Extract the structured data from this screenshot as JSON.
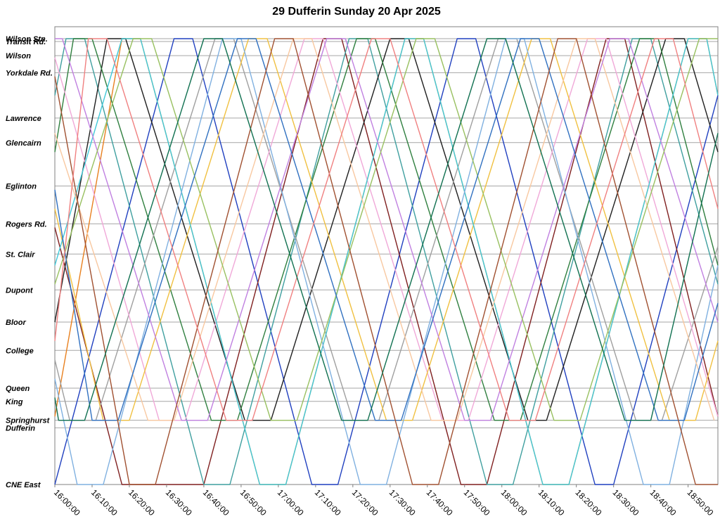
{
  "chart_data": {
    "type": "line",
    "title": "29 Dufferin Sunday 20 Apr 2025",
    "xlabel": "",
    "ylabel": "",
    "x_ticks": [
      "16:00:00",
      "16:10:00",
      "16:20:00",
      "16:30:00",
      "16:40:00",
      "16:50:00",
      "17:00:00",
      "17:10:00",
      "17:20:00",
      "17:30:00",
      "17:40:00",
      "17:50:00",
      "18:00:00",
      "18:10:00",
      "18:20:00",
      "18:30:00",
      "18:40:00",
      "18:50:00"
    ],
    "xlim": [
      "16:00:00",
      "18:58:00"
    ],
    "stops": [
      {
        "name": "Wilson Stn.",
        "km": 0.0
      },
      {
        "name": "Transit Rd.",
        "km": 0.15
      },
      {
        "name": "Wilson",
        "km": 0.9
      },
      {
        "name": "Yorkdale Rd.",
        "km": 1.8
      },
      {
        "name": "Lawrence",
        "km": 4.2
      },
      {
        "name": "Glencairn",
        "km": 5.5
      },
      {
        "name": "Eglinton",
        "km": 7.8
      },
      {
        "name": "Rogers Rd.",
        "km": 9.8
      },
      {
        "name": "St. Clair",
        "km": 11.4
      },
      {
        "name": "Dupont",
        "km": 13.3
      },
      {
        "name": "Bloor",
        "km": 15.0
      },
      {
        "name": "College",
        "km": 16.5
      },
      {
        "name": "Queen",
        "km": 18.5
      },
      {
        "name": "King",
        "km": 19.2
      },
      {
        "name": "Springhurst",
        "km": 20.2
      },
      {
        "name": "Dufferin",
        "km": 20.6
      },
      {
        "name": "CNE East",
        "km": 23.6
      }
    ],
    "series_colors": [
      "#1f3fbf",
      "#7f1f1f",
      "#e8801f",
      "#3f9f9f",
      "#1f1f1f",
      "#2f7f3f",
      "#9f9f9f",
      "#f0a8d8",
      "#f0c040",
      "#40c8d8",
      "#7fb0e0",
      "#f8c8a0",
      "#c080e0",
      "#98c060",
      "#3070c0",
      "#a05030",
      "#f08080",
      "#107050"
    ],
    "series": [
      {
        "trips": [
          [
            "16:00:00",
            23.6
          ],
          [
            "16:32:00",
            0.0
          ],
          [
            "16:37:00",
            0.0
          ],
          [
            "17:09:00",
            23.6
          ],
          [
            "17:16:00",
            23.6
          ],
          [
            "17:48:00",
            0.0
          ],
          [
            "17:53:00",
            0.0
          ],
          [
            "18:25:00",
            23.6
          ],
          [
            "18:30:00",
            23.6
          ],
          [
            "18:58:00",
            3.0
          ]
        ]
      },
      {
        "trips": [
          [
            "16:00:00",
            10.0
          ],
          [
            "16:18:00",
            23.6
          ],
          [
            "16:40:00",
            23.6
          ],
          [
            "17:12:00",
            0.0
          ],
          [
            "17:17:00",
            0.0
          ],
          [
            "17:49:00",
            23.6
          ],
          [
            "17:56:00",
            23.6
          ],
          [
            "18:28:00",
            0.0
          ],
          [
            "18:33:00",
            0.0
          ],
          [
            "18:58:00",
            20.0
          ]
        ]
      },
      {
        "trips": [
          [
            "16:00:00",
            20.0
          ],
          [
            "16:18:00",
            0.0
          ],
          [
            "16:23:00",
            0.0
          ],
          [
            "16:55:00",
            23.6
          ],
          [
            "17:02:00",
            23.6
          ],
          [
            "17:34:00",
            0.0
          ],
          [
            "17:39:00",
            0.0
          ],
          [
            "18:11:00",
            23.6
          ],
          [
            "18:18:00",
            23.6
          ],
          [
            "18:50:00",
            0.0
          ],
          [
            "18:55:00",
            0.0
          ],
          [
            "18:58:00",
            3.0
          ]
        ]
      },
      {
        "trips": [
          [
            "16:00:00",
            3.0
          ],
          [
            "16:03:00",
            0.0
          ],
          [
            "16:08:00",
            0.0
          ],
          [
            "16:40:00",
            23.6
          ],
          [
            "16:47:00",
            23.6
          ],
          [
            "17:19:00",
            0.0
          ],
          [
            "17:24:00",
            0.0
          ],
          [
            "17:56:00",
            23.6
          ],
          [
            "18:03:00",
            23.6
          ],
          [
            "18:35:00",
            0.0
          ],
          [
            "18:40:00",
            0.0
          ],
          [
            "18:58:00",
            13.0
          ]
        ]
      },
      {
        "trips": [
          [
            "16:00:00",
            15.0
          ],
          [
            "16:14:00",
            0.0
          ],
          [
            "16:19:00",
            0.0
          ],
          [
            "16:51:00",
            20.2
          ],
          [
            "16:58:00",
            20.2
          ],
          [
            "17:30:00",
            0.0
          ],
          [
            "17:35:00",
            0.0
          ],
          [
            "18:07:00",
            20.2
          ],
          [
            "18:12:00",
            20.2
          ],
          [
            "18:44:00",
            0.0
          ],
          [
            "18:49:00",
            0.0
          ],
          [
            "18:58:00",
            6.0
          ]
        ]
      },
      {
        "trips": [
          [
            "16:00:00",
            6.0
          ],
          [
            "16:05:00",
            0.0
          ],
          [
            "16:10:00",
            0.0
          ],
          [
            "16:42:00",
            20.2
          ],
          [
            "16:49:00",
            20.2
          ],
          [
            "17:21:00",
            0.0
          ],
          [
            "17:26:00",
            0.0
          ],
          [
            "17:58:00",
            20.2
          ],
          [
            "18:05:00",
            20.2
          ],
          [
            "18:37:00",
            0.0
          ],
          [
            "18:42:00",
            0.0
          ],
          [
            "18:58:00",
            12.0
          ]
        ]
      },
      {
        "trips": [
          [
            "16:00:00",
            17.0
          ],
          [
            "16:04:00",
            20.2
          ],
          [
            "16:11:00",
            20.2
          ],
          [
            "16:43:00",
            0.0
          ],
          [
            "16:48:00",
            0.0
          ],
          [
            "17:20:00",
            20.2
          ],
          [
            "17:27:00",
            20.2
          ],
          [
            "17:59:00",
            0.0
          ],
          [
            "18:04:00",
            0.0
          ],
          [
            "18:36:00",
            20.2
          ],
          [
            "18:43:00",
            20.2
          ],
          [
            "18:58:00",
            11.0
          ]
        ]
      },
      {
        "trips": [
          [
            "16:00:00",
            1.0
          ],
          [
            "16:28:00",
            20.2
          ],
          [
            "16:35:00",
            20.2
          ],
          [
            "17:07:00",
            0.0
          ],
          [
            "17:12:00",
            0.0
          ],
          [
            "17:44:00",
            20.2
          ],
          [
            "17:51:00",
            20.2
          ],
          [
            "18:23:00",
            0.0
          ],
          [
            "18:28:00",
            0.0
          ],
          [
            "18:58:00",
            20.0
          ]
        ]
      },
      {
        "trips": [
          [
            "16:00:00",
            9.0
          ],
          [
            "16:13:00",
            20.2
          ],
          [
            "16:20:00",
            20.2
          ],
          [
            "16:52:00",
            0.0
          ],
          [
            "16:57:00",
            0.0
          ],
          [
            "17:29:00",
            20.2
          ],
          [
            "17:36:00",
            20.2
          ],
          [
            "18:08:00",
            0.0
          ],
          [
            "18:13:00",
            0.0
          ],
          [
            "18:45:00",
            20.2
          ],
          [
            "18:52:00",
            20.2
          ],
          [
            "18:58:00",
            16.0
          ]
        ]
      },
      {
        "trips": [
          [
            "16:00:00",
            12.0
          ],
          [
            "16:18:00",
            0.0
          ],
          [
            "16:23:00",
            0.0
          ],
          [
            "16:55:00",
            23.6
          ],
          [
            "17:02:00",
            23.6
          ],
          [
            "17:34:00",
            0.0
          ],
          [
            "17:39:00",
            0.0
          ],
          [
            "18:11:00",
            23.6
          ],
          [
            "18:18:00",
            23.6
          ],
          [
            "18:50:00",
            0.0
          ],
          [
            "18:55:00",
            0.0
          ],
          [
            "18:58:00",
            3.0
          ]
        ]
      },
      {
        "trips": [
          [
            "16:00:00",
            18.0
          ],
          [
            "16:06:00",
            23.6
          ],
          [
            "16:13:00",
            23.6
          ],
          [
            "16:45:00",
            0.0
          ],
          [
            "16:50:00",
            0.0
          ],
          [
            "17:22:00",
            23.6
          ],
          [
            "17:29:00",
            23.6
          ],
          [
            "18:01:00",
            0.0
          ],
          [
            "18:06:00",
            0.0
          ],
          [
            "18:38:00",
            23.6
          ],
          [
            "18:45:00",
            23.6
          ],
          [
            "18:58:00",
            12.0
          ]
        ]
      },
      {
        "trips": [
          [
            "16:00:00",
            5.0
          ],
          [
            "16:25:00",
            20.2
          ],
          [
            "16:32:00",
            20.2
          ],
          [
            "17:04:00",
            0.0
          ],
          [
            "17:09:00",
            0.0
          ],
          [
            "17:41:00",
            20.2
          ],
          [
            "17:48:00",
            20.2
          ],
          [
            "18:20:00",
            0.0
          ],
          [
            "18:25:00",
            0.0
          ],
          [
            "18:57:00",
            20.2
          ]
        ]
      },
      {
        "trips": [
          [
            "16:00:00",
            0.0
          ],
          [
            "16:02:00",
            0.0
          ],
          [
            "16:34:00",
            20.2
          ],
          [
            "16:41:00",
            20.2
          ],
          [
            "17:13:00",
            0.0
          ],
          [
            "17:18:00",
            0.0
          ],
          [
            "17:50:00",
            20.2
          ],
          [
            "17:57:00",
            20.2
          ],
          [
            "18:29:00",
            0.0
          ],
          [
            "18:34:00",
            0.0
          ],
          [
            "18:58:00",
            15.0
          ]
        ]
      },
      {
        "trips": [
          [
            "16:00:00",
            13.0
          ],
          [
            "16:21:00",
            0.0
          ],
          [
            "16:26:00",
            0.0
          ],
          [
            "16:58:00",
            20.2
          ],
          [
            "17:05:00",
            20.2
          ],
          [
            "17:37:00",
            0.0
          ],
          [
            "17:42:00",
            0.0
          ],
          [
            "18:14:00",
            20.2
          ],
          [
            "18:21:00",
            20.2
          ],
          [
            "18:53:00",
            0.0
          ],
          [
            "18:58:00",
            0.0
          ]
        ]
      },
      {
        "trips": [
          [
            "16:00:00",
            8.0
          ],
          [
            "16:10:00",
            20.2
          ],
          [
            "16:17:00",
            20.2
          ],
          [
            "16:49:00",
            0.0
          ],
          [
            "16:54:00",
            0.0
          ],
          [
            "17:26:00",
            20.2
          ],
          [
            "17:33:00",
            20.2
          ],
          [
            "18:05:00",
            0.0
          ],
          [
            "18:10:00",
            0.0
          ],
          [
            "18:42:00",
            20.2
          ],
          [
            "18:49:00",
            20.2
          ],
          [
            "18:58:00",
            14.0
          ]
        ]
      },
      {
        "trips": [
          [
            "16:00:00",
            2.0
          ],
          [
            "16:20:00",
            23.6
          ],
          [
            "16:27:00",
            23.6
          ],
          [
            "16:59:00",
            0.0
          ],
          [
            "17:04:00",
            0.0
          ],
          [
            "17:36:00",
            23.6
          ],
          [
            "17:43:00",
            23.6
          ],
          [
            "18:15:00",
            0.0
          ],
          [
            "18:20:00",
            0.0
          ],
          [
            "18:52:00",
            23.6
          ],
          [
            "18:58:00",
            23.6
          ]
        ]
      },
      {
        "trips": [
          [
            "16:00:00",
            16.0
          ],
          [
            "16:09:00",
            0.0
          ],
          [
            "16:14:00",
            0.0
          ],
          [
            "16:46:00",
            20.2
          ],
          [
            "16:53:00",
            20.2
          ],
          [
            "17:25:00",
            0.0
          ],
          [
            "17:30:00",
            0.0
          ],
          [
            "18:02:00",
            20.2
          ],
          [
            "18:09:00",
            20.2
          ],
          [
            "18:41:00",
            0.0
          ],
          [
            "18:46:00",
            0.0
          ],
          [
            "18:58:00",
            9.0
          ]
        ]
      },
      {
        "trips": [
          [
            "16:00:00",
            19.0
          ],
          [
            "16:01:00",
            20.2
          ],
          [
            "16:08:00",
            20.2
          ],
          [
            "16:40:00",
            0.0
          ],
          [
            "16:45:00",
            0.0
          ],
          [
            "17:17:00",
            20.2
          ],
          [
            "17:24:00",
            20.2
          ],
          [
            "17:56:00",
            0.0
          ],
          [
            "18:01:00",
            0.0
          ],
          [
            "18:33:00",
            20.2
          ],
          [
            "18:40:00",
            20.2
          ],
          [
            "18:58:00",
            5.0
          ]
        ]
      }
    ]
  }
}
